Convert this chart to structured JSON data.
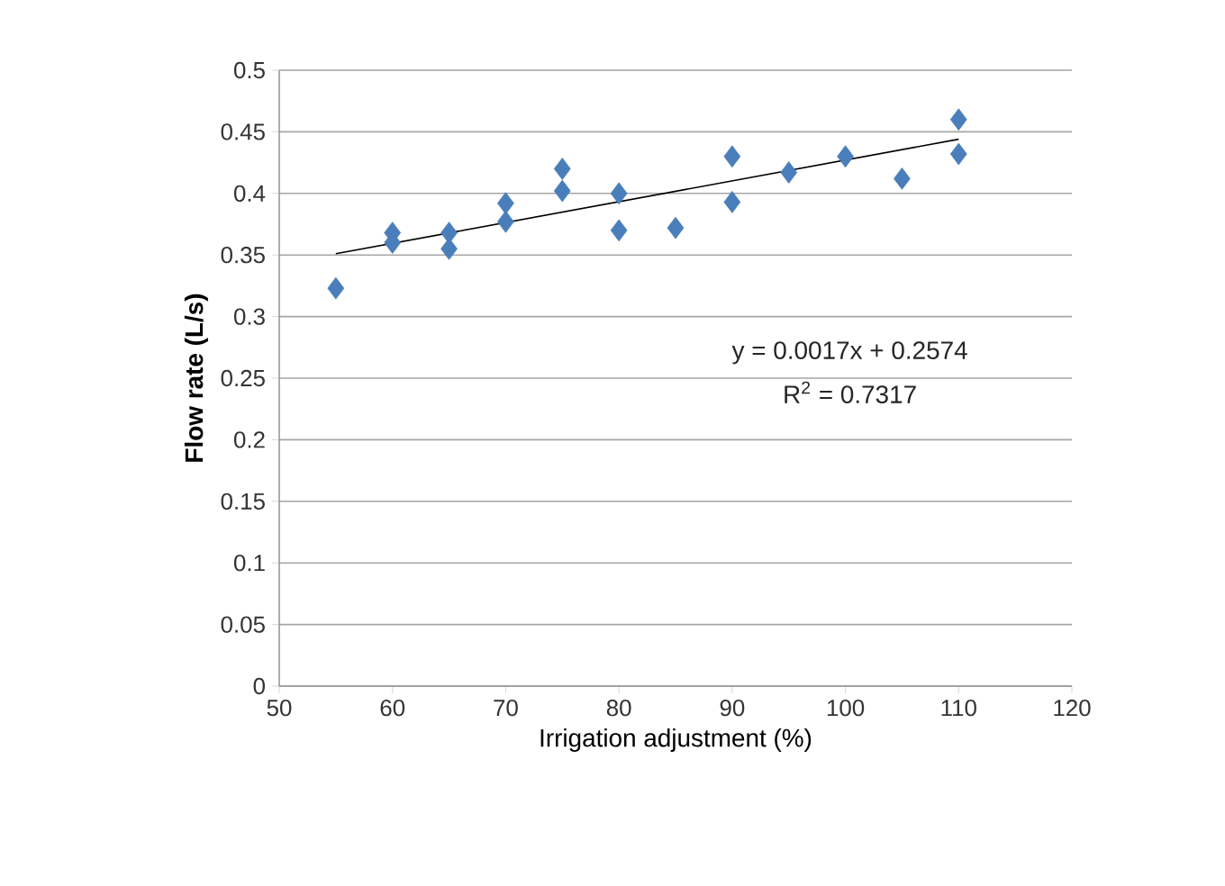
{
  "chart_data": {
    "type": "scatter",
    "xlabel": "Irrigation adjustment (%)",
    "ylabel": "Flow rate (L/s)",
    "xlim": [
      50,
      120
    ],
    "xticks": [
      50,
      60,
      70,
      80,
      90,
      100,
      110,
      120
    ],
    "ylim": [
      0,
      0.5
    ],
    "yticks": [
      0,
      0.05,
      0.1,
      0.15,
      0.2,
      0.25,
      0.3,
      0.35,
      0.4,
      0.45,
      0.5
    ],
    "grid": "y",
    "marker": "diamond",
    "series": [
      {
        "color": "#4a7ebb",
        "x": [
          55,
          60,
          60,
          65,
          65,
          70,
          70,
          75,
          75,
          80,
          80,
          85,
          90,
          90,
          95,
          100,
          105,
          110,
          110
        ],
        "values": [
          0.323,
          0.368,
          0.36,
          0.368,
          0.355,
          0.392,
          0.377,
          0.42,
          0.402,
          0.4,
          0.37,
          0.372,
          0.43,
          0.393,
          0.417,
          0.43,
          0.412,
          0.46,
          0.432
        ]
      },
      {
        "type": "line",
        "color": "#000000",
        "marker": "none",
        "x": [
          55,
          110
        ],
        "values": [
          0.351,
          0.444
        ]
      }
    ],
    "annotations": [
      "y = 0.0017x + 0.2574",
      "R$^{2}$ = 0.7317"
    ]
  }
}
